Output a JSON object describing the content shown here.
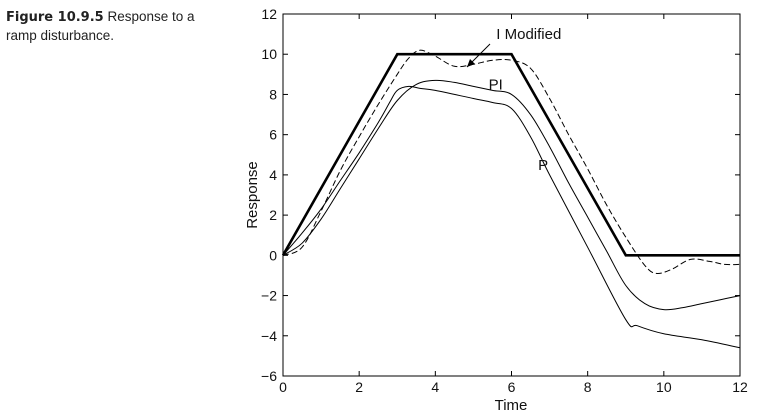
{
  "caption": {
    "label": "Figure 10.9.5",
    "text": "Response to a ramp disturbance."
  },
  "chart_data": {
    "type": "line",
    "title": "",
    "xlabel": "Time",
    "ylabel": "Response",
    "xlim": [
      0,
      12
    ],
    "ylim": [
      -6,
      12
    ],
    "xticks": [
      0,
      2,
      4,
      6,
      8,
      10,
      12
    ],
    "yticks": [
      -6,
      -4,
      -2,
      0,
      2,
      4,
      6,
      8,
      10,
      12
    ],
    "xtick_labels": [
      "0",
      "2",
      "4",
      "6",
      "8",
      "10",
      "12"
    ],
    "ytick_labels": [
      "−6",
      "−4",
      "−2",
      "0",
      "2",
      "4",
      "6",
      "8",
      "10",
      "12"
    ],
    "grid": false,
    "series": [
      {
        "style": "thick-solid",
        "x": [
          0,
          3,
          6,
          9,
          12
        ],
        "y": [
          0,
          10,
          10,
          0,
          0
        ]
      },
      {
        "name": "I Modified",
        "style": "dashed",
        "x": [
          0,
          0.5,
          1,
          1.5,
          2,
          2.5,
          3,
          3.3,
          3.6,
          4,
          4.5,
          5,
          5.5,
          6,
          6.5,
          7,
          7.5,
          8,
          8.5,
          9,
          9.5,
          9.8,
          10.2,
          10.7,
          11.2,
          11.6,
          12
        ],
        "y": [
          0,
          0.4,
          2.2,
          4.2,
          5.9,
          7.5,
          9.0,
          9.8,
          10.2,
          9.9,
          9.4,
          9.5,
          9.7,
          9.7,
          9.3,
          7.8,
          6.0,
          4.3,
          2.5,
          0.9,
          -0.5,
          -0.9,
          -0.7,
          -0.2,
          -0.3,
          -0.45,
          -0.45
        ]
      },
      {
        "name": "PI",
        "style": "solid",
        "x": [
          0,
          0.5,
          1,
          1.5,
          2,
          2.5,
          3,
          3.5,
          4,
          4.5,
          5,
          5.5,
          6,
          6.5,
          7,
          7.5,
          8,
          8.5,
          9,
          9.5,
          10,
          10.5,
          11,
          11.5,
          12
        ],
        "y": [
          0,
          0.6,
          1.8,
          3.3,
          4.8,
          6.3,
          7.7,
          8.5,
          8.7,
          8.6,
          8.4,
          8.2,
          8.0,
          7.0,
          5.4,
          3.6,
          1.9,
          0.2,
          -1.5,
          -2.4,
          -2.7,
          -2.6,
          -2.4,
          -2.2,
          -2.0
        ]
      },
      {
        "name": "P",
        "style": "solid",
        "x": [
          0,
          0.5,
          1,
          1.5,
          2,
          2.5,
          2.8,
          3,
          3.3,
          3.6,
          4,
          5,
          5.5,
          6,
          6.5,
          7,
          8,
          9,
          9.3,
          10,
          11,
          12
        ],
        "y": [
          0,
          1.1,
          2.3,
          3.7,
          5.1,
          6.6,
          7.6,
          8.2,
          8.4,
          8.3,
          8.2,
          7.8,
          7.6,
          7.3,
          5.9,
          4.0,
          0.4,
          -3.2,
          -3.5,
          -3.9,
          -4.2,
          -4.6
        ]
      }
    ],
    "annotations": [
      {
        "text": "I Modified",
        "x": 5.6,
        "y": 11.0
      },
      {
        "text": "PI",
        "x": 5.4,
        "y": 8.5
      },
      {
        "text": "P",
        "x": 6.7,
        "y": 4.5
      }
    ]
  }
}
